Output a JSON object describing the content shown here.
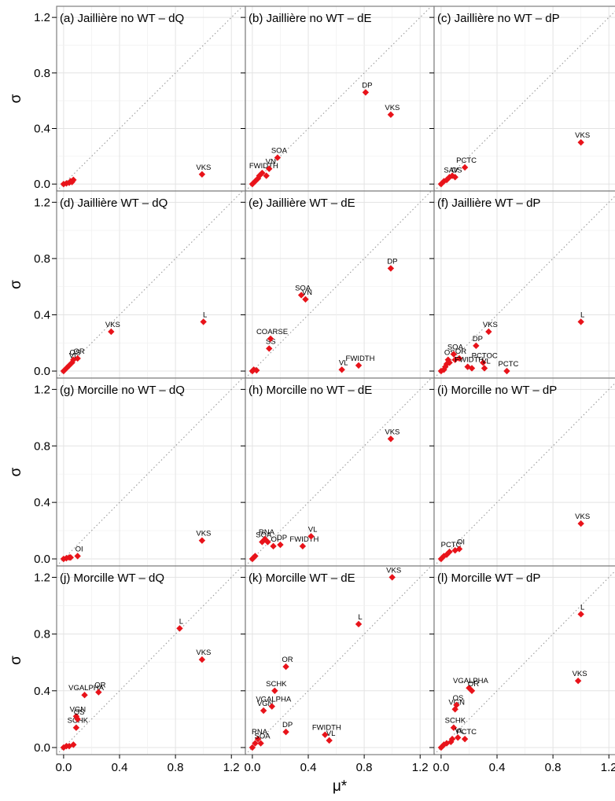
{
  "chart_data": {
    "type": "scatter",
    "layout": {
      "rows": 4,
      "cols": 3
    },
    "xlabel": "μ*",
    "ylabel": "σ",
    "xlim": [
      -0.05,
      1.3
    ],
    "ylim": [
      -0.05,
      1.28
    ],
    "x_ticks": [
      0.0,
      0.4,
      0.8,
      1.2
    ],
    "x_tick_labels": [
      "0.0",
      "0.4",
      "0.8",
      "1.2"
    ],
    "y_ticks": [
      0.0,
      0.4,
      0.8,
      1.2
    ],
    "y_tick_labels": [
      "0.0",
      "0.4",
      "0.8",
      "1.2"
    ],
    "reference_line": "y = x (dotted)",
    "grid": true,
    "point_color": "#e8131a",
    "panels": [
      {
        "title": "(a) Jaillière  no WT – dQ",
        "points": [
          {
            "x": 0.0,
            "y": 0.0
          },
          {
            "x": 0.02,
            "y": 0.005
          },
          {
            "x": 0.04,
            "y": 0.01
          },
          {
            "x": 0.05,
            "y": 0.02
          },
          {
            "x": 0.07,
            "y": 0.03
          },
          {
            "x": 0.06,
            "y": 0.015
          },
          {
            "x": 0.99,
            "y": 0.07,
            "label": "VKS"
          }
        ]
      },
      {
        "title": "(b) Jaillière  no WT – dE",
        "points": [
          {
            "x": 0.0,
            "y": 0.0
          },
          {
            "x": 0.02,
            "y": 0.02
          },
          {
            "x": 0.04,
            "y": 0.04
          },
          {
            "x": 0.05,
            "y": 0.06
          },
          {
            "x": 0.07,
            "y": 0.08,
            "label": "FWIDTH"
          },
          {
            "x": 0.1,
            "y": 0.06
          },
          {
            "x": 0.12,
            "y": 0.11,
            "label": "VN"
          },
          {
            "x": 0.18,
            "y": 0.19,
            "label": "SOA"
          },
          {
            "x": 0.81,
            "y": 0.66,
            "label": "DP"
          },
          {
            "x": 0.99,
            "y": 0.5,
            "label": "VKS"
          }
        ]
      },
      {
        "title": "(c) Jaillière  no WT – dP",
        "points": [
          {
            "x": 0.0,
            "y": 0.0
          },
          {
            "x": 0.02,
            "y": 0.02
          },
          {
            "x": 0.04,
            "y": 0.03
          },
          {
            "x": 0.06,
            "y": 0.05,
            "label": "SAV"
          },
          {
            "x": 0.08,
            "y": 0.06
          },
          {
            "x": 0.1,
            "y": 0.05,
            "label": "OS"
          },
          {
            "x": 0.17,
            "y": 0.12,
            "label": "PCTC"
          },
          {
            "x": 1.0,
            "y": 0.3,
            "label": "VKS"
          }
        ]
      },
      {
        "title": "(d) Jaillière  WT – dQ",
        "points": [
          {
            "x": 0.0,
            "y": 0.0
          },
          {
            "x": 0.02,
            "y": 0.02
          },
          {
            "x": 0.04,
            "y": 0.04
          },
          {
            "x": 0.06,
            "y": 0.06,
            "label": "VL"
          },
          {
            "x": 0.07,
            "y": 0.08,
            "label": "OS"
          },
          {
            "x": 0.1,
            "y": 0.09,
            "label": "OR"
          },
          {
            "x": 0.34,
            "y": 0.28,
            "label": "VKS"
          },
          {
            "x": 1.0,
            "y": 0.35,
            "label": "L"
          }
        ]
      },
      {
        "title": "(e) Jaillière  WT – dE",
        "points": [
          {
            "x": 0.0,
            "y": 0.0
          },
          {
            "x": 0.01,
            "y": 0.01
          },
          {
            "x": 0.03,
            "y": 0.005
          },
          {
            "x": 0.12,
            "y": 0.16,
            "label": "SS"
          },
          {
            "x": 0.13,
            "y": 0.23,
            "label": "COARSE"
          },
          {
            "x": 0.35,
            "y": 0.54,
            "label": "SOA"
          },
          {
            "x": 0.38,
            "y": 0.51,
            "label": "VN"
          },
          {
            "x": 0.64,
            "y": 0.01,
            "label": "VL"
          },
          {
            "x": 0.76,
            "y": 0.04,
            "label": "FWIDTH"
          },
          {
            "x": 0.99,
            "y": 0.73,
            "label": "DP"
          }
        ]
      },
      {
        "title": "(f) Jaillière  WT – dP",
        "points": [
          {
            "x": 0.0,
            "y": 0.0
          },
          {
            "x": 0.02,
            "y": 0.01
          },
          {
            "x": 0.03,
            "y": 0.03
          },
          {
            "x": 0.04,
            "y": 0.05
          },
          {
            "x": 0.06,
            "y": 0.06
          },
          {
            "x": 0.05,
            "y": 0.08,
            "label": "OS"
          },
          {
            "x": 0.09,
            "y": 0.12,
            "label": "SOA"
          },
          {
            "x": 0.1,
            "y": 0.08
          },
          {
            "x": 0.13,
            "y": 0.09,
            "label": "OR"
          },
          {
            "x": 0.19,
            "y": 0.03,
            "label": "FWIDTH"
          },
          {
            "x": 0.22,
            "y": 0.02
          },
          {
            "x": 0.25,
            "y": 0.18,
            "label": "DP"
          },
          {
            "x": 0.3,
            "y": 0.06,
            "label": "PCTOC"
          },
          {
            "x": 0.31,
            "y": 0.02,
            "label": "VL"
          },
          {
            "x": 0.34,
            "y": 0.28,
            "label": "VKS"
          },
          {
            "x": 0.47,
            "y": 0.0,
            "label": "PCTC"
          },
          {
            "x": 1.0,
            "y": 0.35,
            "label": "L"
          }
        ]
      },
      {
        "title": "(g) Morcille  no WT – dQ",
        "points": [
          {
            "x": 0.0,
            "y": 0.0
          },
          {
            "x": 0.02,
            "y": 0.005
          },
          {
            "x": 0.04,
            "y": 0.01
          },
          {
            "x": 0.05,
            "y": 0.01
          },
          {
            "x": 0.1,
            "y": 0.02,
            "label": "OI"
          },
          {
            "x": 0.99,
            "y": 0.13,
            "label": "VKS"
          }
        ]
      },
      {
        "title": "(h) Morcille  no WT – dE",
        "points": [
          {
            "x": 0.0,
            "y": 0.0
          },
          {
            "x": 0.01,
            "y": 0.01
          },
          {
            "x": 0.02,
            "y": 0.02
          },
          {
            "x": 0.07,
            "y": 0.12,
            "label": "SOA"
          },
          {
            "x": 0.09,
            "y": 0.14,
            "label": "RNA"
          },
          {
            "x": 0.11,
            "y": 0.12
          },
          {
            "x": 0.15,
            "y": 0.09,
            "label": "OI"
          },
          {
            "x": 0.2,
            "y": 0.1,
            "label": "DP"
          },
          {
            "x": 0.36,
            "y": 0.09,
            "label": "FWIDTH"
          },
          {
            "x": 0.42,
            "y": 0.16,
            "label": "VL"
          },
          {
            "x": 0.99,
            "y": 0.85,
            "label": "VKS"
          }
        ]
      },
      {
        "title": "(i) Morcille  no WT – dP",
        "points": [
          {
            "x": 0.0,
            "y": 0.0
          },
          {
            "x": 0.02,
            "y": 0.02
          },
          {
            "x": 0.04,
            "y": 0.03
          },
          {
            "x": 0.06,
            "y": 0.05,
            "label": "PCTC"
          },
          {
            "x": 0.1,
            "y": 0.06
          },
          {
            "x": 0.13,
            "y": 0.07,
            "label": "OI"
          },
          {
            "x": 1.0,
            "y": 0.25,
            "label": "VKS"
          }
        ]
      },
      {
        "title": "(j) Morcille  WT – dQ",
        "points": [
          {
            "x": 0.0,
            "y": 0.0
          },
          {
            "x": 0.02,
            "y": 0.01
          },
          {
            "x": 0.04,
            "y": 0.01
          },
          {
            "x": 0.07,
            "y": 0.02
          },
          {
            "x": 0.09,
            "y": 0.14,
            "label": "SCHK"
          },
          {
            "x": 0.09,
            "y": 0.22,
            "label": "VGN"
          },
          {
            "x": 0.1,
            "y": 0.2,
            "label": "OS"
          },
          {
            "x": 0.15,
            "y": 0.37,
            "label": "VGALPHA"
          },
          {
            "x": 0.25,
            "y": 0.39,
            "label": "OR"
          },
          {
            "x": 0.83,
            "y": 0.84,
            "label": "L"
          },
          {
            "x": 0.99,
            "y": 0.62,
            "label": "VKS"
          }
        ]
      },
      {
        "title": "(k) Morcille  WT – dE",
        "points": [
          {
            "x": 0.0,
            "y": 0.0
          },
          {
            "x": 0.02,
            "y": 0.03
          },
          {
            "x": 0.04,
            "y": 0.06,
            "label": "RNA"
          },
          {
            "x": 0.06,
            "y": 0.03,
            "label": "SOA"
          },
          {
            "x": 0.08,
            "y": 0.26,
            "label": "VGN"
          },
          {
            "x": 0.14,
            "y": 0.29,
            "label": "VGALPHA"
          },
          {
            "x": 0.16,
            "y": 0.4,
            "label": "SCHK"
          },
          {
            "x": 0.24,
            "y": 0.57,
            "label": "OR"
          },
          {
            "x": 0.24,
            "y": 0.11,
            "label": "DP"
          },
          {
            "x": 0.52,
            "y": 0.09,
            "label": "FWIDTH"
          },
          {
            "x": 0.55,
            "y": 0.05,
            "label": "VL"
          },
          {
            "x": 0.76,
            "y": 0.87,
            "label": "L"
          },
          {
            "x": 1.0,
            "y": 1.2,
            "label": "VKS"
          }
        ]
      },
      {
        "title": "(l) Morcille  WT – dP",
        "points": [
          {
            "x": 0.0,
            "y": 0.0
          },
          {
            "x": 0.02,
            "y": 0.02
          },
          {
            "x": 0.04,
            "y": 0.03
          },
          {
            "x": 0.07,
            "y": 0.04
          },
          {
            "x": 0.08,
            "y": 0.06
          },
          {
            "x": 0.09,
            "y": 0.14,
            "label": "SCHK"
          },
          {
            "x": 0.1,
            "y": 0.27,
            "label": "VGN"
          },
          {
            "x": 0.11,
            "y": 0.3,
            "label": "OS"
          },
          {
            "x": 0.12,
            "y": 0.07,
            "label": "VL"
          },
          {
            "x": 0.17,
            "y": 0.06,
            "label": "PCTC"
          },
          {
            "x": 0.2,
            "y": 0.42,
            "label": "VGALPHA"
          },
          {
            "x": 0.22,
            "y": 0.4,
            "label": "OR"
          },
          {
            "x": 0.98,
            "y": 0.47,
            "label": "VKS"
          },
          {
            "x": 1.0,
            "y": 0.94,
            "label": "L"
          }
        ]
      }
    ]
  }
}
